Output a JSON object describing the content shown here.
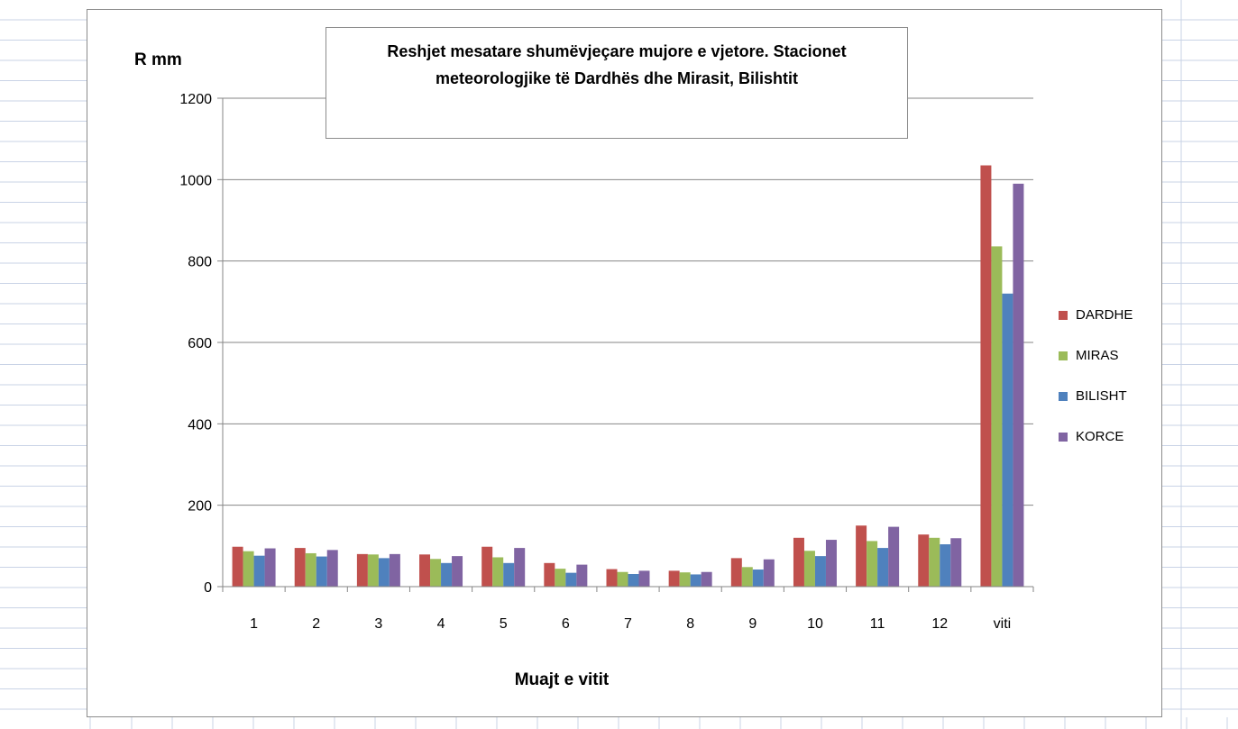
{
  "chart_data": {
    "type": "bar",
    "title": "Reshjet mesatare shumëvjeçare mujore e vjetore. Stacionet meteorologjike të Dardhës dhe Mirasit, Bilishtit",
    "xlabel": "Muajt e vitit",
    "ylabel": "R mm",
    "categories": [
      "1",
      "2",
      "3",
      "4",
      "5",
      "6",
      "7",
      "8",
      "9",
      "10",
      "11",
      "12",
      "viti"
    ],
    "ylim": [
      0,
      1200
    ],
    "yticks": [
      0,
      200,
      400,
      600,
      800,
      1000,
      1200
    ],
    "grid": true,
    "legend_position": "right",
    "series": [
      {
        "name": "DARDHE",
        "color": "#c0504d",
        "values": [
          98,
          95,
          80,
          79,
          98,
          58,
          43,
          39,
          70,
          120,
          150,
          128,
          1035
        ]
      },
      {
        "name": "MIRAS",
        "color": "#9bbb59",
        "values": [
          87,
          82,
          79,
          68,
          72,
          44,
          36,
          35,
          48,
          88,
          112,
          120,
          836
        ]
      },
      {
        "name": "BILISHT",
        "color": "#4f81bd",
        "values": [
          76,
          74,
          70,
          58,
          58,
          34,
          31,
          30,
          42,
          75,
          95,
          104,
          720
        ]
      },
      {
        "name": "KORCE",
        "color": "#8064a2",
        "values": [
          94,
          90,
          80,
          75,
          95,
          54,
          39,
          36,
          67,
          115,
          147,
          119,
          990
        ]
      }
    ]
  }
}
